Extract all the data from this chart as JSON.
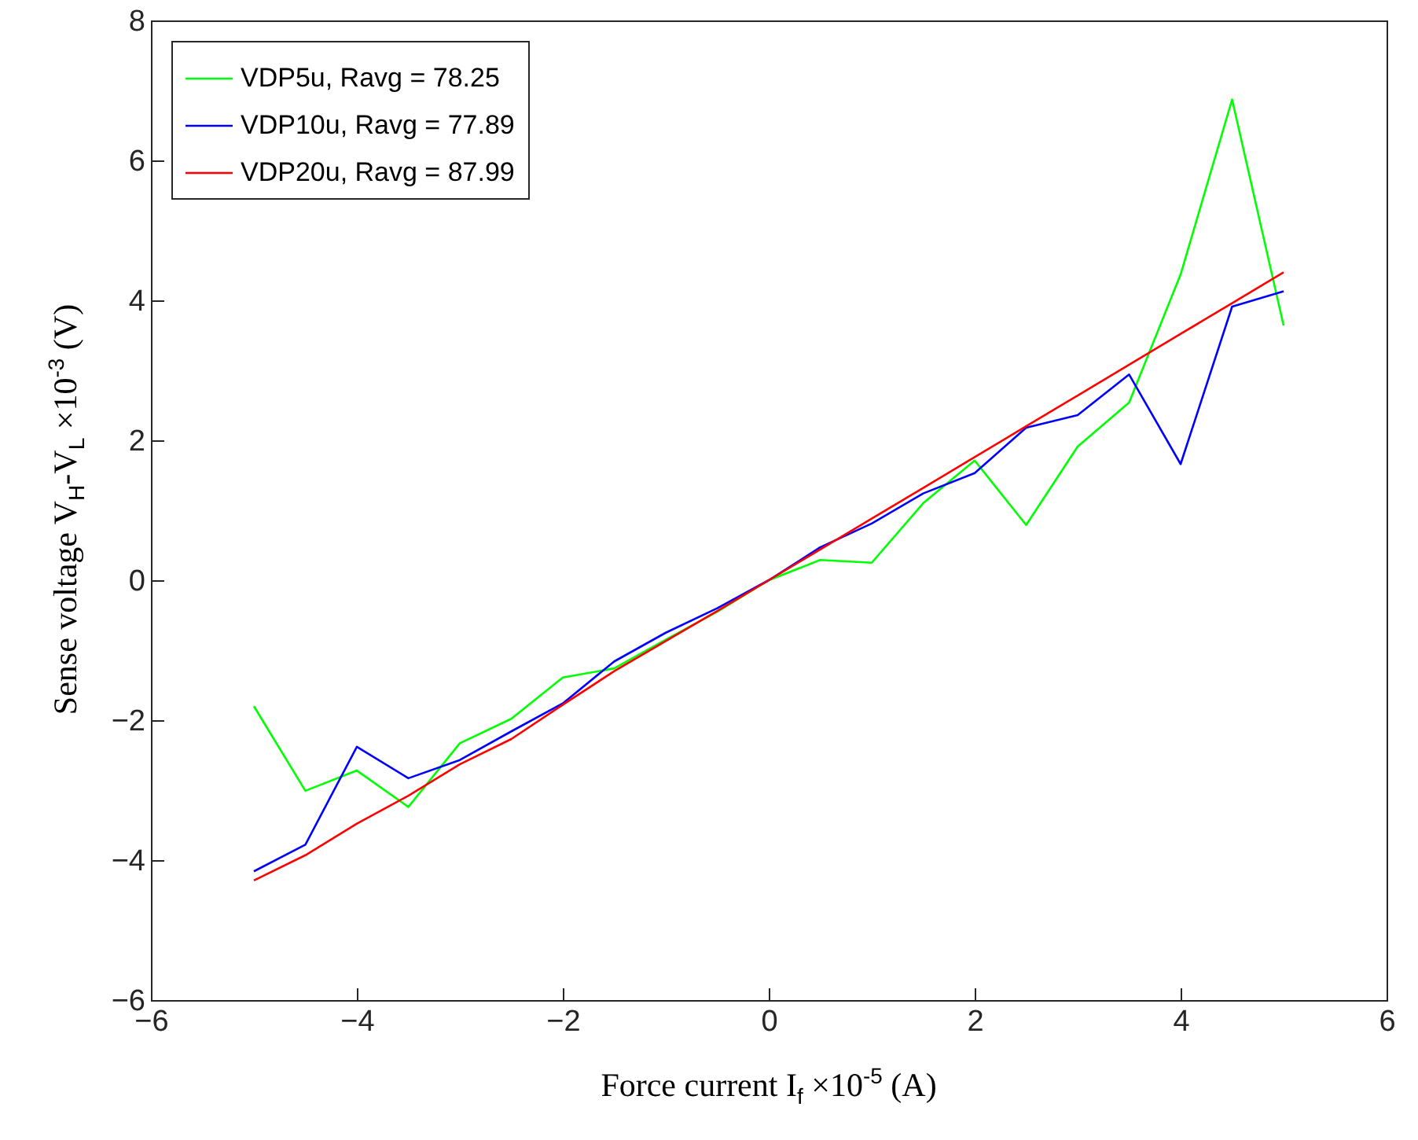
{
  "chart_data": {
    "type": "line",
    "xlabel": "Force current  I$_{f}$  ×10$^{-5}$ (A)",
    "ylabel": "Sense voltage  V$_{H}$-V$_{L}$  ×10$^{-3}$ (V)",
    "x": [
      -5,
      -4.5,
      -4,
      -3.5,
      -3,
      -2.5,
      -2,
      -1.5,
      -1,
      -0.5,
      0,
      0.5,
      1,
      1.5,
      2,
      2.5,
      3,
      3.5,
      4,
      4.5,
      5
    ],
    "series": [
      {
        "name": "VDP5u, Ravg = 78.25",
        "color": "#00ff00",
        "values": [
          -1.8,
          -3.01,
          -2.72,
          -3.24,
          -2.33,
          -1.98,
          -1.39,
          -1.26,
          -0.85,
          -0.45,
          0,
          0.29,
          0.25,
          1.1,
          1.71,
          0.79,
          1.91,
          2.54,
          4.37,
          6.87,
          3.64
        ]
      },
      {
        "name": "VDP10u, Ravg = 77.89",
        "color": "#0000ff",
        "values": [
          -4.16,
          -3.78,
          -2.38,
          -2.83,
          -2.57,
          -2.16,
          -1.76,
          -1.16,
          -0.75,
          -0.4,
          0,
          0.47,
          0.81,
          1.24,
          1.53,
          2.18,
          2.36,
          2.94,
          1.66,
          3.91,
          4.13
        ]
      },
      {
        "name": "VDP20u, Ravg = 87.99",
        "color": "#ff0000",
        "values": [
          -4.29,
          -3.93,
          -3.48,
          -3.08,
          -2.63,
          -2.27,
          -1.78,
          -1.3,
          -0.87,
          -0.44,
          0,
          0.44,
          0.88,
          1.32,
          1.76,
          2.2,
          2.64,
          3.08,
          3.52,
          3.96,
          4.4
        ]
      }
    ],
    "xlim": [
      -6,
      6
    ],
    "xticks": [
      -6,
      -4,
      -2,
      0,
      2,
      4,
      6
    ],
    "ylim": [
      -6,
      8
    ],
    "yticks": [
      -6,
      -4,
      -2,
      0,
      2,
      4,
      6,
      8
    ],
    "grid": false,
    "legend": "top left",
    "marker": "none",
    "line_style": "solid"
  }
}
